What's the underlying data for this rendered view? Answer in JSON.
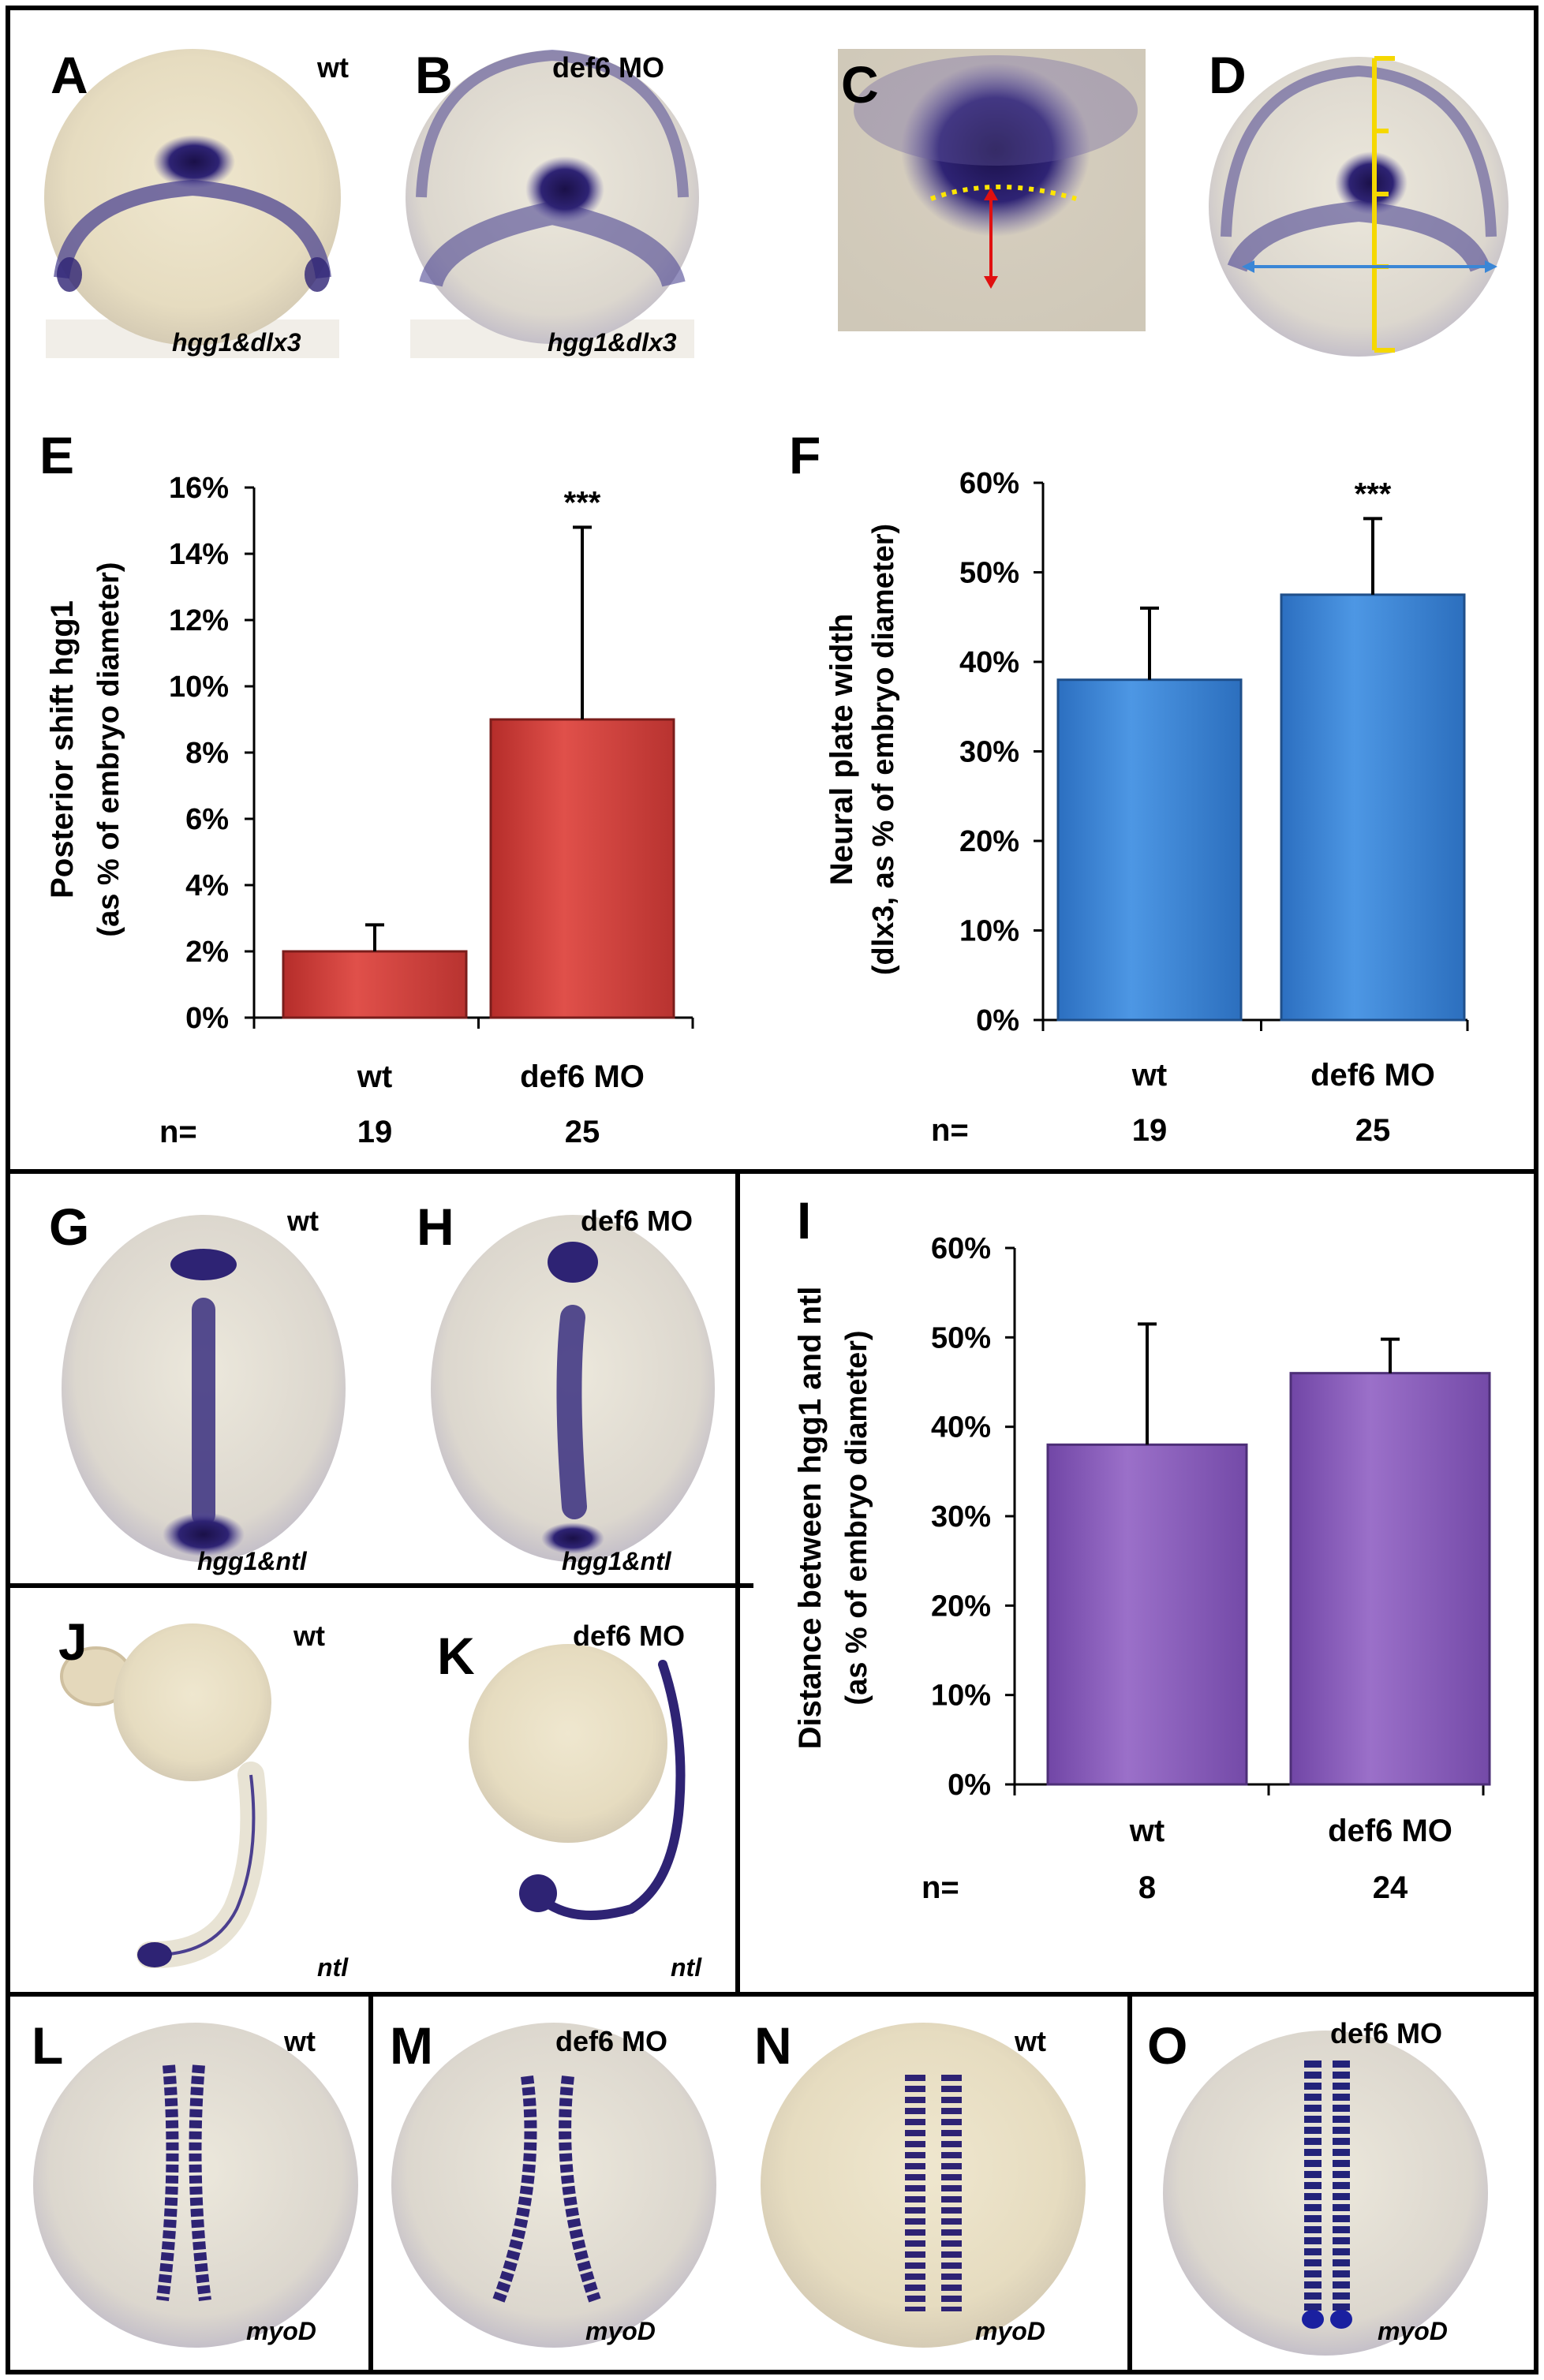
{
  "panels": {
    "A": {
      "letter": "A",
      "condition": "wt",
      "gene": "hgg1&dlx3"
    },
    "B": {
      "letter": "B",
      "condition": "def6 MO",
      "gene": "hgg1&dlx3"
    },
    "C": {
      "letter": "C"
    },
    "D": {
      "letter": "D"
    },
    "G": {
      "letter": "G",
      "condition": "wt",
      "gene": "hgg1&ntl"
    },
    "H": {
      "letter": "H",
      "condition": "def6 MO",
      "gene": "hgg1&ntl"
    },
    "J": {
      "letter": "J",
      "condition": "wt",
      "gene": "ntl"
    },
    "K": {
      "letter": "K",
      "condition": "def6 MO",
      "gene": "ntl"
    },
    "L": {
      "letter": "L",
      "condition": "wt",
      "gene": "myoD"
    },
    "M": {
      "letter": "M",
      "condition": "def6 MO",
      "gene": "myoD"
    },
    "N": {
      "letter": "N",
      "condition": "wt",
      "gene": "myoD"
    },
    "O": {
      "letter": "O",
      "condition": "def6 MO",
      "gene": "myoD"
    }
  },
  "colors": {
    "red_bar": "#d0403c",
    "blue_bar": "#3b84d6",
    "purple_bar": "#8a5cb8",
    "stain": "#2a1f6e",
    "embryo_bg": "#e9dfc4"
  },
  "chart_data": [
    {
      "panel": "E",
      "type": "bar",
      "letter": "E",
      "ylabel_line1": "Posterior shift hgg1",
      "ylabel_line2": "(as % of embryo diameter)",
      "categories": [
        "wt",
        "def6 MO"
      ],
      "values": [
        2,
        9
      ],
      "errors": [
        0.8,
        5.8
      ],
      "ylim": [
        0,
        16
      ],
      "yticks": [
        "0%",
        "2%",
        "4%",
        "6%",
        "8%",
        "10%",
        "12%",
        "14%",
        "16%"
      ],
      "significance": "***",
      "n_label": "n=",
      "n_values": [
        "19",
        "25"
      ]
    },
    {
      "panel": "F",
      "type": "bar",
      "letter": "F",
      "ylabel_line1": "Neural plate width",
      "ylabel_line2": "(dlx3, as % of embryo diameter)",
      "categories": [
        "wt",
        "def6 MO"
      ],
      "values": [
        38,
        47.5
      ],
      "errors": [
        8,
        8.5
      ],
      "ylim": [
        0,
        60
      ],
      "yticks": [
        "0%",
        "10%",
        "20%",
        "30%",
        "40%",
        "50%",
        "60%"
      ],
      "significance": "***",
      "n_label": "n=",
      "n_values": [
        "19",
        "25"
      ]
    },
    {
      "panel": "I",
      "type": "bar",
      "letter": "I",
      "ylabel_line1": "Distance between hgg1 and ntl",
      "ylabel_line2": "(as % of embryo diameter)",
      "categories": [
        "wt",
        "def6 MO"
      ],
      "values": [
        38,
        46
      ],
      "errors": [
        13.5,
        3.8
      ],
      "ylim": [
        0,
        60
      ],
      "yticks": [
        "0%",
        "10%",
        "20%",
        "30%",
        "40%",
        "50%",
        "60%"
      ],
      "significance": "",
      "n_label": "n=",
      "n_values": [
        "8",
        "24"
      ]
    }
  ]
}
